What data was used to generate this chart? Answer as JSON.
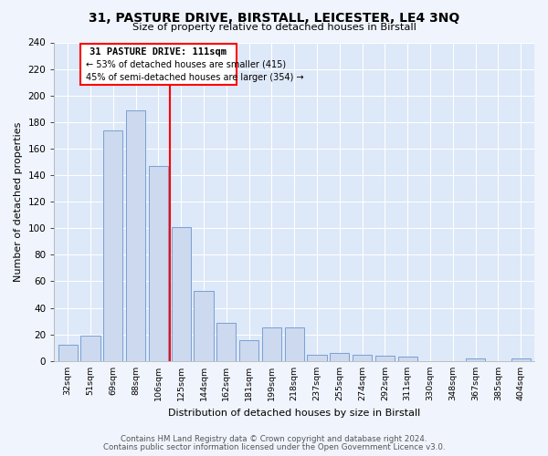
{
  "title": "31, PASTURE DRIVE, BIRSTALL, LEICESTER, LE4 3NQ",
  "subtitle": "Size of property relative to detached houses in Birstall",
  "xlabel": "Distribution of detached houses by size in Birstall",
  "ylabel": "Number of detached properties",
  "bar_labels": [
    "32sqm",
    "51sqm",
    "69sqm",
    "88sqm",
    "106sqm",
    "125sqm",
    "144sqm",
    "162sqm",
    "181sqm",
    "199sqm",
    "218sqm",
    "237sqm",
    "255sqm",
    "274sqm",
    "292sqm",
    "311sqm",
    "330sqm",
    "348sqm",
    "367sqm",
    "385sqm",
    "404sqm"
  ],
  "bar_values": [
    12,
    19,
    174,
    189,
    147,
    101,
    53,
    29,
    16,
    25,
    25,
    5,
    6,
    5,
    4,
    3,
    0,
    0,
    2,
    0,
    2
  ],
  "bar_color": "#ccd9ee",
  "bar_edge_color": "#7a9fd4",
  "reference_line_x": 4.5,
  "reference_line_label": "31 PASTURE DRIVE: 111sqm",
  "annotation_line1": "← 53% of detached houses are smaller (415)",
  "annotation_line2": "45% of semi-detached houses are larger (354) →",
  "vline_color": "red",
  "ylim": [
    0,
    240
  ],
  "yticks": [
    0,
    20,
    40,
    60,
    80,
    100,
    120,
    140,
    160,
    180,
    200,
    220,
    240
  ],
  "background_color": "#dde8f8",
  "fig_background": "#f0f4fc",
  "grid_color": "#ffffff",
  "footer_line1": "Contains HM Land Registry data © Crown copyright and database right 2024.",
  "footer_line2": "Contains public sector information licensed under the Open Government Licence v3.0."
}
